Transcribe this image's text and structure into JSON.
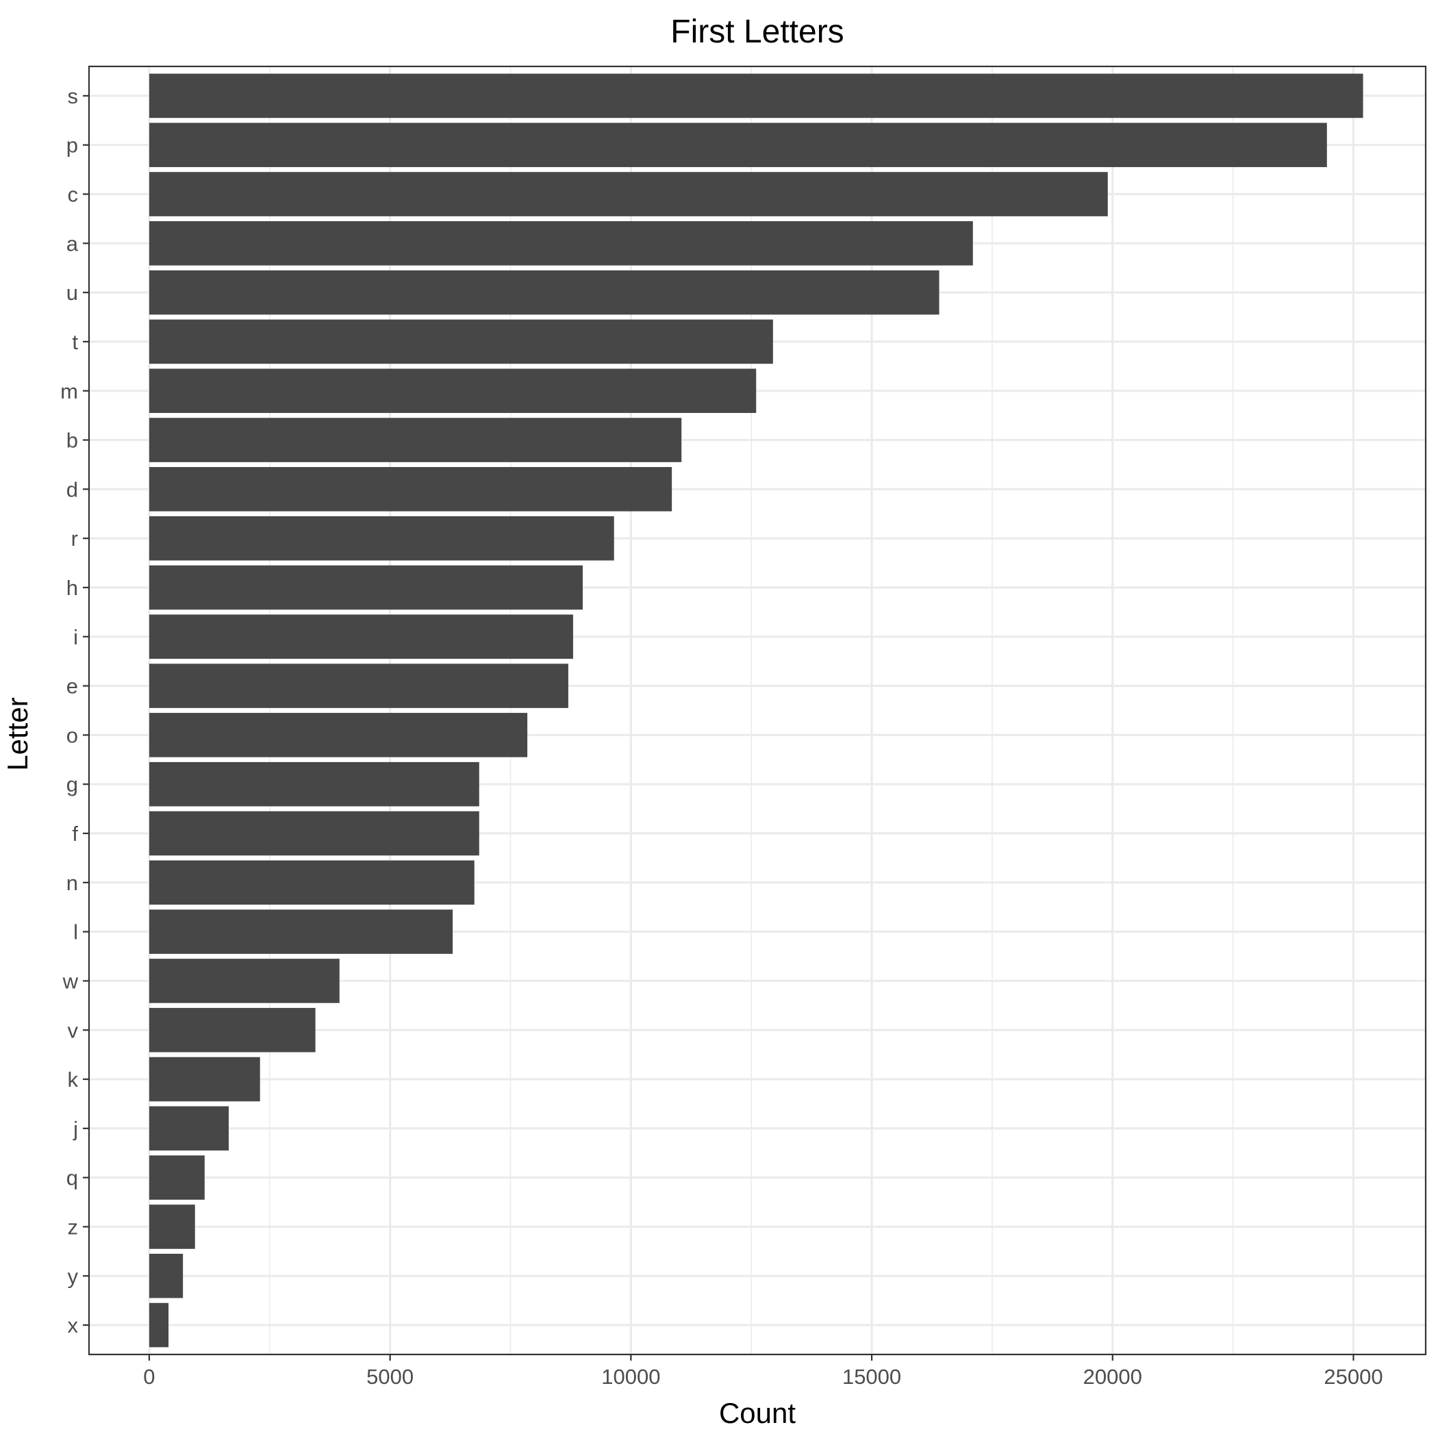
{
  "chart_data": {
    "type": "bar",
    "orientation": "horizontal",
    "title": "First Letters",
    "xlabel": "Count",
    "ylabel": "Letter",
    "categories": [
      "s",
      "p",
      "c",
      "a",
      "u",
      "t",
      "m",
      "b",
      "d",
      "r",
      "h",
      "i",
      "e",
      "o",
      "g",
      "f",
      "n",
      "l",
      "w",
      "v",
      "k",
      "j",
      "q",
      "z",
      "y",
      "x"
    ],
    "values": [
      25200,
      24450,
      19900,
      17100,
      16400,
      12950,
      12600,
      11050,
      10850,
      9650,
      9000,
      8800,
      8700,
      7850,
      6850,
      6850,
      6750,
      6300,
      3950,
      3450,
      2300,
      1650,
      1150,
      950,
      700,
      400
    ],
    "xlim": [
      -1250,
      26500
    ],
    "xticks": [
      0,
      5000,
      10000,
      15000,
      20000,
      25000
    ],
    "xtick_labels": [
      "0",
      "5000",
      "10000",
      "15000",
      "20000",
      "25000"
    ],
    "grid": true,
    "bar_color": "#474747"
  }
}
